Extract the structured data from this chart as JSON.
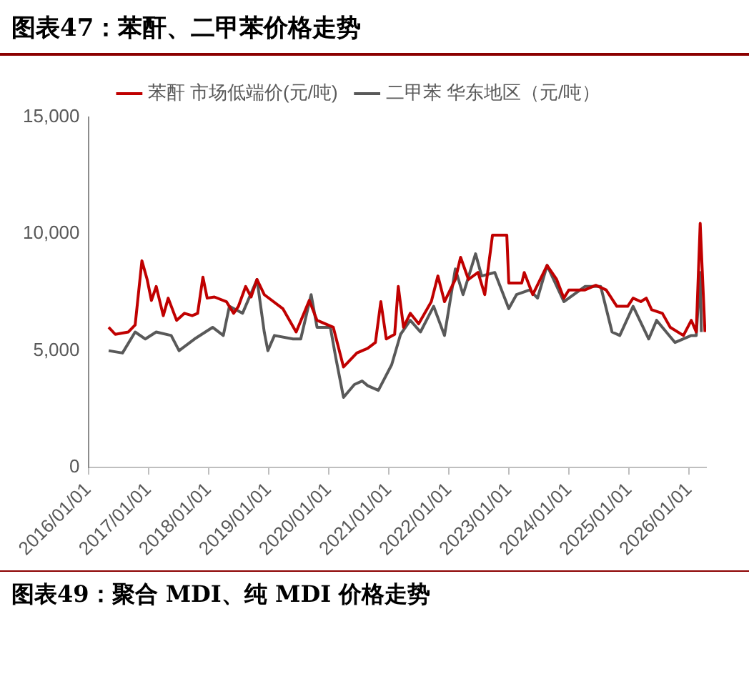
{
  "chart_data": {
    "type": "line",
    "title": "图表47：苯酐、二甲苯价格走势",
    "annotations": [
      "图表49：聚合 MDI、纯 MDI 价格走势"
    ],
    "legend": "top",
    "grid": false,
    "marker": "none",
    "line_style": "solid",
    "xlim": [
      "2016-01-01",
      "2026-04-15"
    ],
    "xticks": [
      {
        "value": "2016-01-01",
        "label": "2016/01/01"
      },
      {
        "value": "2017-01-01",
        "label": "2017/01/01"
      },
      {
        "value": "2018-01-01",
        "label": "2018/01/01"
      },
      {
        "value": "2019-01-01",
        "label": "2019/01/01"
      },
      {
        "value": "2020-01-01",
        "label": "2020/01/01"
      },
      {
        "value": "2021-01-01",
        "label": "2021/01/01"
      },
      {
        "value": "2022-01-01",
        "label": "2022/01/01"
      },
      {
        "value": "2023-01-01",
        "label": "2023/01/01"
      },
      {
        "value": "2024-01-01",
        "label": "2024/01/01"
      },
      {
        "value": "2025-01-01",
        "label": "2025/01/01"
      },
      {
        "value": "2026-01-01",
        "label": "2026/01/01"
      }
    ],
    "ylim": [
      0,
      15000
    ],
    "yticks": [
      {
        "value": 0,
        "label": "0"
      },
      {
        "value": 5000,
        "label": "5,000"
      },
      {
        "value": 10000,
        "label": "10,000"
      },
      {
        "value": 15000,
        "label": "15,000"
      }
    ],
    "series": [
      {
        "name": "苯酐 市场低端价(元/吨)",
        "color": "#c00000",
        "x": [
          "2016-05-04",
          "2016-06-13",
          "2016-09-01",
          "2016-10-12",
          "2016-11-22",
          "2016-12-24",
          "2017-01-19",
          "2017-02-17",
          "2017-04-01",
          "2017-05-01",
          "2017-06-21",
          "2017-08-08",
          "2017-09-24",
          "2017-10-27",
          "2017-11-28",
          "2017-12-24",
          "2018-02-06",
          "2018-04-20",
          "2018-06-03",
          "2018-07-02",
          "2018-08-15",
          "2018-09-17",
          "2018-10-23",
          "2018-12-06",
          "2019-03-29",
          "2019-06-18",
          "2019-09-06",
          "2019-10-23",
          "2020-01-30",
          "2020-04-01",
          "2020-06-21",
          "2020-08-26",
          "2020-10-12",
          "2020-11-14",
          "2020-12-17",
          "2021-02-06",
          "2021-02-28",
          "2021-04-01",
          "2021-05-12",
          "2021-07-02",
          "2021-09-17",
          "2021-10-27",
          "2021-12-06",
          "2022-02-10",
          "2022-03-14",
          "2022-05-01",
          "2022-06-28",
          "2022-08-08",
          "2022-09-24",
          "2022-12-20",
          "2023-01-01",
          "2023-03-21",
          "2023-04-05",
          "2023-05-27",
          "2023-08-22",
          "2023-10-19",
          "2023-12-02",
          "2024-01-01",
          "2024-04-08",
          "2024-06-13",
          "2024-08-15",
          "2024-10-19",
          "2024-12-24",
          "2025-01-26",
          "2025-03-14",
          "2025-04-16",
          "2025-05-19",
          "2025-07-23",
          "2025-09-09",
          "2025-11-28",
          "2026-01-15",
          "2026-02-14",
          "2026-03-10",
          "2026-03-17",
          "2026-04-08"
        ],
        "values": [
          6000,
          5700,
          5800,
          6100,
          8850,
          8050,
          7150,
          7750,
          6500,
          7250,
          6300,
          6600,
          6500,
          6600,
          8150,
          7250,
          7300,
          7100,
          6600,
          6900,
          7750,
          7300,
          8050,
          7400,
          6800,
          5800,
          7150,
          6300,
          6000,
          4300,
          4900,
          5100,
          5350,
          7100,
          5500,
          5700,
          7750,
          6000,
          6600,
          6150,
          7100,
          8200,
          7100,
          8050,
          9000,
          8050,
          8350,
          7400,
          9950,
          9950,
          7900,
          7900,
          8350,
          7400,
          8650,
          8050,
          7250,
          7600,
          7600,
          7800,
          7600,
          6900,
          6900,
          7250,
          7100,
          7250,
          6750,
          6600,
          6000,
          5650,
          6300,
          5800,
          10450,
          9300,
          5800
        ]
      },
      {
        "name": "二甲苯 华东地区（元/吨）",
        "color": "#595959",
        "x": [
          "2016-05-04",
          "2016-07-27",
          "2016-10-12",
          "2016-12-13",
          "2017-02-17",
          "2017-05-19",
          "2017-07-06",
          "2017-10-08",
          "2018-01-26",
          "2018-04-01",
          "2018-05-08",
          "2018-07-27",
          "2018-10-23",
          "2018-12-06",
          "2018-12-28",
          "2019-02-06",
          "2019-05-30",
          "2019-07-16",
          "2019-09-17",
          "2019-10-23",
          "2020-01-12",
          "2020-02-14",
          "2020-04-01",
          "2020-06-06",
          "2020-07-23",
          "2020-08-26",
          "2020-10-30",
          "2021-01-19",
          "2021-03-14",
          "2021-05-12",
          "2021-07-13",
          "2021-10-01",
          "2021-12-06",
          "2022-02-10",
          "2022-03-29",
          "2022-06-13",
          "2022-07-20",
          "2022-10-08",
          "2023-01-01",
          "2023-02-17",
          "2023-05-08",
          "2023-06-25",
          "2023-08-22",
          "2023-12-02",
          "2024-04-08",
          "2024-07-13",
          "2024-09-20",
          "2024-11-06",
          "2025-01-26",
          "2025-05-01",
          "2025-06-18",
          "2025-10-08",
          "2026-01-15",
          "2026-02-14",
          "2026-03-10",
          "2026-03-17"
        ],
        "values": [
          5000,
          4900,
          5800,
          5500,
          5800,
          5650,
          5000,
          5500,
          6000,
          5650,
          6900,
          6600,
          8050,
          5800,
          5000,
          5650,
          5500,
          5500,
          7400,
          6000,
          6000,
          4700,
          3000,
          3550,
          3700,
          3500,
          3300,
          4400,
          5700,
          6300,
          5800,
          6900,
          5650,
          8500,
          7400,
          9150,
          8200,
          8350,
          6800,
          7400,
          7600,
          7250,
          8650,
          7100,
          7750,
          7750,
          5800,
          5650,
          6900,
          5500,
          6300,
          5350,
          5650,
          5650,
          8350,
          5800
        ]
      }
    ]
  }
}
